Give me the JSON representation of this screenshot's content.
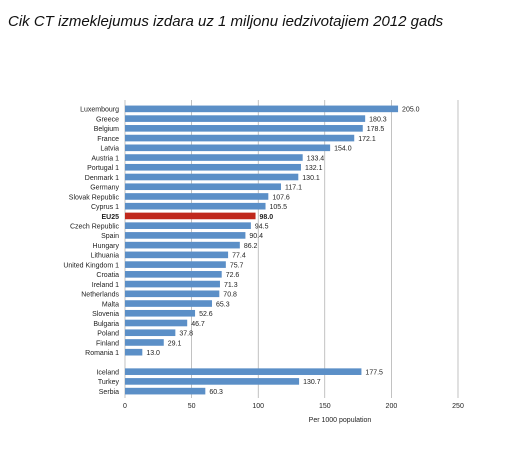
{
  "chart_data": {
    "type": "bar",
    "orientation": "horizontal",
    "title": "Cik CT izmeklejumus izdara uz 1 miljonu iedzivotajiem 2012 gads",
    "x_label": "Per 1000 population",
    "categories": [
      "Luxembourg",
      "Greece",
      "Belgium",
      "France",
      "Latvia",
      "Austria 1",
      "Portugal 1",
      "Denmark 1",
      "Germany",
      "Slovak Republic",
      "Cyprus 1",
      "EU25",
      "Czech Republic",
      "Spain",
      "Hungary",
      "Lithuania",
      "United Kingdom 1",
      "Croatia",
      "Ireland 1",
      "Netherlands",
      "Malta",
      "Slovenia",
      "Bulgaria",
      "Poland",
      "Finland",
      "Romania 1",
      null,
      "Iceland",
      "Turkey",
      "Serbia"
    ],
    "values": [
      205.0,
      180.3,
      178.5,
      172.1,
      154.0,
      133.4,
      132.1,
      130.1,
      117.1,
      107.6,
      105.5,
      98.0,
      94.5,
      90.4,
      86.2,
      77.4,
      75.7,
      72.6,
      71.3,
      70.8,
      65.3,
      52.6,
      46.7,
      37.8,
      29.1,
      13.0,
      null,
      177.5,
      130.7,
      60.3
    ],
    "value_labels": [
      "205.0",
      "180.3",
      "178.5",
      "172.1",
      "154.0",
      "133.4",
      "132.1",
      "130.1",
      "117.1",
      "107.6",
      "105.5",
      "98.0",
      "94.5",
      "90.4",
      "86.2",
      "77.4",
      "75.7",
      "72.6",
      "71.3",
      "70.8",
      "65.3",
      "52.6",
      "46.7",
      "37.8",
      "29.1",
      "13.0",
      null,
      "177.5",
      "130.7",
      "60.3"
    ],
    "color": "#5b8fc7",
    "colors": [
      "#5b8fc7",
      "#5b8fc7",
      "#5b8fc7",
      "#5b8fc7",
      "#5b8fc7",
      "#5b8fc7",
      "#5b8fc7",
      "#5b8fc7",
      "#5b8fc7",
      "#5b8fc7",
      "#5b8fc7",
      "#c0281c",
      "#5b8fc7",
      "#5b8fc7",
      "#5b8fc7",
      "#5b8fc7",
      "#5b8fc7",
      "#5b8fc7",
      "#5b8fc7",
      "#5b8fc7",
      "#5b8fc7",
      "#5b8fc7",
      "#5b8fc7",
      "#5b8fc7",
      "#5b8fc7",
      "#5b8fc7",
      null,
      "#5b8fc7",
      "#5b8fc7",
      "#5b8fc7"
    ],
    "xlim": [
      0,
      250
    ],
    "xticks": [
      0,
      50,
      100,
      150,
      200,
      250
    ],
    "grid": true
  }
}
